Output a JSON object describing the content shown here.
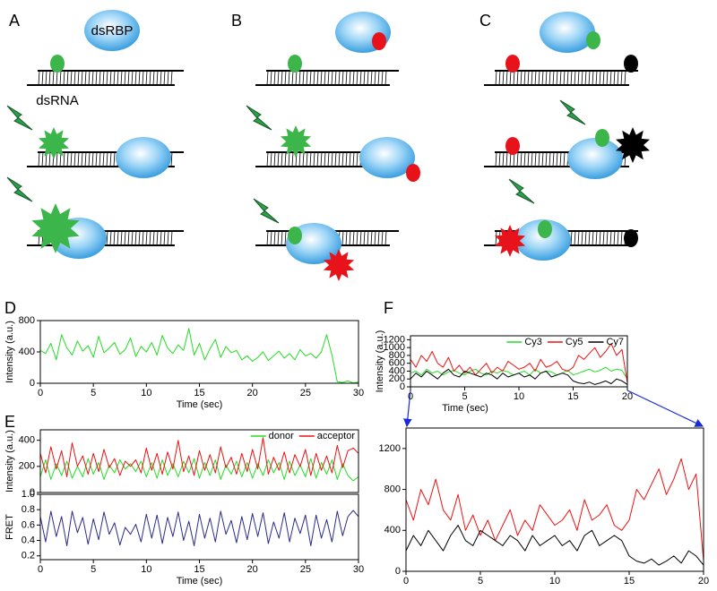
{
  "panel_labels": [
    "A",
    "B",
    "C",
    "D",
    "E",
    "F"
  ],
  "diagram": {
    "protein": "dsRBP",
    "rna": "dsRNA"
  },
  "chart_data": [
    {
      "type": "line",
      "xlabel": "Time (sec)",
      "ylabel": "Intensity (a.u.)",
      "x": [
        0,
        0.5,
        1,
        1.5,
        2,
        2.5,
        3,
        3.5,
        4,
        4.5,
        5,
        5.5,
        6,
        6.5,
        7,
        7.5,
        8,
        8.5,
        9,
        9.5,
        10,
        10.5,
        11,
        11.5,
        12,
        12.5,
        13,
        13.5,
        14,
        14.5,
        15,
        15.5,
        16,
        16.5,
        17,
        17.5,
        18,
        18.5,
        19,
        19.5,
        20,
        20.5,
        21,
        21.5,
        22,
        22.5,
        23,
        23.5,
        24,
        24.5,
        25,
        25.5,
        26,
        26.5,
        27,
        27.5,
        28,
        28.5,
        29,
        29.5,
        30
      ],
      "series": [
        {
          "color": "#22dd22",
          "values": [
            420,
            380,
            510,
            300,
            620,
            450,
            360,
            540,
            410,
            480,
            330,
            600,
            390,
            450,
            520,
            370,
            430,
            580,
            340,
            470,
            400,
            520,
            360,
            610,
            450,
            380,
            490,
            420,
            700,
            360,
            510,
            300,
            440,
            560,
            330,
            470,
            390,
            420,
            300,
            350,
            280,
            330,
            400,
            290,
            350,
            410,
            320,
            380,
            300,
            430,
            350,
            380,
            320,
            400,
            620,
            360,
            20,
            10,
            30,
            5,
            15
          ]
        }
      ],
      "xlim": [
        0,
        30
      ],
      "ylim": [
        0,
        800
      ],
      "xticks": [
        0,
        5,
        10,
        15,
        20,
        25,
        30
      ],
      "yticks": [
        0,
        400,
        800
      ]
    },
    {
      "type": "line",
      "ylabel": "Intensity (a.u.)",
      "legend": "upper right",
      "x": [
        0,
        0.5,
        1,
        1.5,
        2,
        2.5,
        3,
        3.5,
        4,
        4.5,
        5,
        5.5,
        6,
        6.5,
        7,
        7.5,
        8,
        8.5,
        9,
        9.5,
        10,
        10.5,
        11,
        11.5,
        12,
        12.5,
        13,
        13.5,
        14,
        14.5,
        15,
        15.5,
        16,
        16.5,
        17,
        17.5,
        18,
        18.5,
        19,
        19.5,
        20,
        20.5,
        21,
        21.5,
        22,
        22.5,
        23,
        23.5,
        24,
        24.5,
        25,
        25.5,
        26,
        26.5,
        27,
        27.5,
        28,
        28.5,
        29,
        29.5,
        30
      ],
      "series": [
        {
          "name": "donor",
          "color": "#22dd22",
          "values": [
            120,
            250,
            100,
            220,
            130,
            240,
            110,
            200,
            120,
            260,
            140,
            230,
            100,
            210,
            150,
            250,
            180,
            220,
            160,
            240,
            120,
            230,
            110,
            250,
            130,
            220,
            120,
            240,
            150,
            260,
            110,
            230,
            130,
            250,
            100,
            210,
            140,
            240,
            120,
            230,
            110,
            220,
            130,
            250,
            150,
            230,
            100,
            240,
            130,
            210,
            120,
            260,
            110,
            230,
            140,
            250,
            100,
            220,
            130,
            90,
            120
          ]
        },
        {
          "name": "acceptor",
          "color": "#ee1111",
          "values": [
            300,
            150,
            350,
            180,
            320,
            120,
            380,
            200,
            280,
            140,
            300,
            160,
            330,
            190,
            260,
            130,
            240,
            200,
            250,
            150,
            340,
            170,
            300,
            140,
            310,
            180,
            400,
            160,
            280,
            130,
            320,
            170,
            290,
            150,
            350,
            190,
            270,
            140,
            300,
            160,
            330,
            180,
            420,
            140,
            270,
            170,
            310,
            150,
            290,
            200,
            330,
            130,
            300,
            170,
            280,
            150,
            360,
            190,
            320,
            340,
            300
          ]
        }
      ],
      "xlim": [
        0,
        30
      ],
      "ylim": [
        0,
        480
      ],
      "yticks": [
        0,
        200,
        400
      ]
    },
    {
      "type": "line",
      "xlabel": "Time (sec)",
      "ylabel": "FRET",
      "x": [
        0,
        0.5,
        1,
        1.5,
        2,
        2.5,
        3,
        3.5,
        4,
        4.5,
        5,
        5.5,
        6,
        6.5,
        7,
        7.5,
        8,
        8.5,
        9,
        9.5,
        10,
        10.5,
        11,
        11.5,
        12,
        12.5,
        13,
        13.5,
        14,
        14.5,
        15,
        15.5,
        16,
        16.5,
        17,
        17.5,
        18,
        18.5,
        19,
        19.5,
        20,
        20.5,
        21,
        21.5,
        22,
        22.5,
        23,
        23.5,
        24,
        24.5,
        25,
        25.5,
        26,
        26.5,
        27,
        27.5,
        28,
        28.5,
        29,
        29.5,
        30
      ],
      "series": [
        {
          "color": "#2b2b8c",
          "values": [
            0.71,
            0.38,
            0.78,
            0.45,
            0.71,
            0.33,
            0.78,
            0.5,
            0.7,
            0.35,
            0.68,
            0.41,
            0.77,
            0.48,
            0.63,
            0.34,
            0.57,
            0.48,
            0.61,
            0.38,
            0.74,
            0.43,
            0.73,
            0.36,
            0.7,
            0.45,
            0.77,
            0.4,
            0.65,
            0.33,
            0.74,
            0.43,
            0.69,
            0.38,
            0.78,
            0.48,
            0.66,
            0.37,
            0.71,
            0.41,
            0.75,
            0.45,
            0.76,
            0.36,
            0.64,
            0.43,
            0.76,
            0.38,
            0.69,
            0.49,
            0.73,
            0.33,
            0.73,
            0.43,
            0.67,
            0.38,
            0.78,
            0.46,
            0.71,
            0.79,
            0.71
          ]
        }
      ],
      "xlim": [
        0,
        30
      ],
      "ylim": [
        0.15,
        1.0
      ],
      "xticks": [
        0,
        5,
        10,
        15,
        20,
        25,
        30
      ],
      "yticks": [
        0.2,
        0.4,
        0.6,
        0.8,
        {
          "value": 1,
          "label": "1.0"
        }
      ]
    },
    {
      "type": "line",
      "xlabel": "Time (sec)",
      "ylabel": "Intensity (a.u.)",
      "legend": "upper right",
      "x": [
        0,
        0.5,
        1,
        1.5,
        2,
        2.5,
        3,
        3.5,
        4,
        4.5,
        5,
        5.5,
        6,
        6.5,
        7,
        7.5,
        8,
        8.5,
        9,
        9.5,
        10,
        10.5,
        11,
        11.5,
        12,
        12.5,
        13,
        13.5,
        14,
        14.5,
        15,
        15.5,
        16,
        16.5,
        17,
        17.5,
        18,
        18.5,
        19,
        19.5,
        20
      ],
      "series": [
        {
          "name": "Cy3",
          "color": "#22dd22",
          "values": [
            350,
            400,
            300,
            450,
            350,
            400,
            300,
            380,
            420,
            350,
            300,
            400,
            450,
            350,
            300,
            400,
            350,
            420,
            380,
            300,
            350,
            400,
            300,
            450,
            350,
            400,
            380,
            300,
            350,
            420,
            300,
            350,
            400,
            450,
            380,
            420,
            500,
            400,
            450,
            420,
            200
          ]
        },
        {
          "name": "Cy5",
          "color": "#ee1111",
          "values": [
            700,
            500,
            800,
            650,
            900,
            600,
            500,
            750,
            400,
            550,
            350,
            500,
            300,
            450,
            600,
            350,
            500,
            400,
            650,
            550,
            450,
            500,
            600,
            400,
            700,
            500,
            550,
            650,
            450,
            400,
            500,
            800,
            700,
            850,
            1000,
            750,
            900,
            1100,
            800,
            950,
            100
          ]
        },
        {
          "name": "Cy7",
          "color": "#000000",
          "values": [
            200,
            350,
            250,
            400,
            300,
            200,
            350,
            450,
            300,
            250,
            400,
            350,
            300,
            250,
            350,
            300,
            200,
            350,
            250,
            300,
            350,
            250,
            300,
            200,
            350,
            400,
            250,
            300,
            350,
            300,
            150,
            100,
            80,
            120,
            60,
            100,
            150,
            80,
            200,
            150,
            60
          ]
        }
      ],
      "xlim": [
        0,
        20
      ],
      "ylim": [
        0,
        1300
      ],
      "xticks": [
        0,
        5,
        10,
        15,
        20
      ],
      "yticks": [
        0,
        200,
        400,
        600,
        800,
        1000,
        1200
      ]
    },
    {
      "type": "line",
      "x": [
        0,
        0.5,
        1,
        1.5,
        2,
        2.5,
        3,
        3.5,
        4,
        4.5,
        5,
        5.5,
        6,
        6.5,
        7,
        7.5,
        8,
        8.5,
        9,
        9.5,
        10,
        10.5,
        11,
        11.5,
        12,
        12.5,
        13,
        13.5,
        14,
        14.5,
        15,
        15.5,
        16,
        16.5,
        17,
        17.5,
        18,
        18.5,
        19,
        19.5,
        20
      ],
      "series": [
        {
          "color": "#ee1111",
          "values": [
            700,
            500,
            800,
            650,
            900,
            600,
            500,
            750,
            400,
            550,
            350,
            500,
            300,
            450,
            600,
            350,
            500,
            400,
            650,
            550,
            450,
            500,
            600,
            400,
            700,
            500,
            550,
            650,
            450,
            400,
            500,
            800,
            700,
            850,
            1000,
            750,
            900,
            1100,
            800,
            950,
            100
          ]
        },
        {
          "color": "#000000",
          "values": [
            200,
            350,
            250,
            400,
            300,
            200,
            350,
            450,
            300,
            250,
            400,
            350,
            300,
            250,
            350,
            300,
            200,
            350,
            250,
            300,
            350,
            250,
            300,
            200,
            350,
            400,
            250,
            300,
            350,
            300,
            150,
            100,
            80,
            120,
            60,
            100,
            150,
            80,
            200,
            150,
            60
          ]
        }
      ],
      "xlim": [
        0,
        20
      ],
      "ylim": [
        0,
        1400
      ],
      "xticks": [
        0,
        5,
        10,
        15,
        20
      ],
      "yticks": [
        0,
        400,
        800,
        1200
      ]
    }
  ]
}
